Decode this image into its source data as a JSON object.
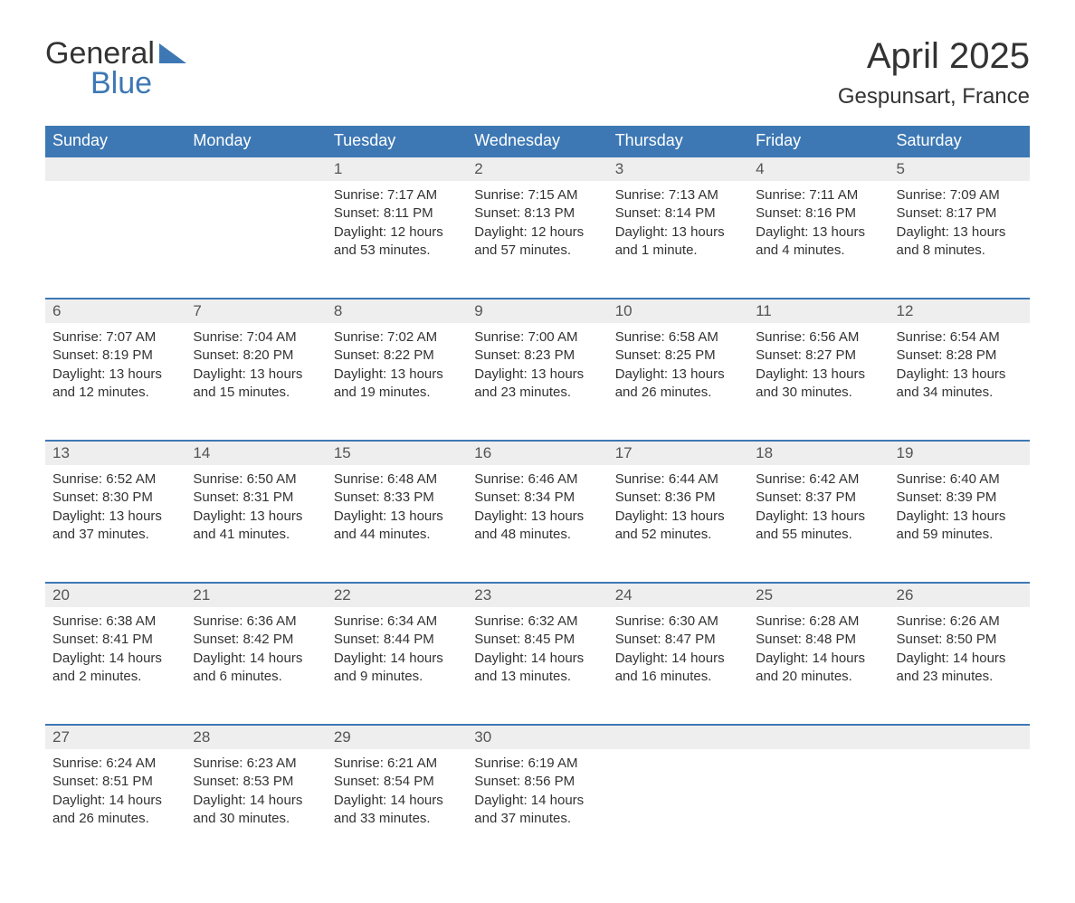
{
  "logo": {
    "word1": "General",
    "word2": "Blue"
  },
  "title": "April 2025",
  "location": "Gespunsart, France",
  "colors": {
    "header_bg": "#3d78b4",
    "header_text": "#ffffff",
    "daynum_bg": "#eeeeee",
    "row_border": "#3d78b4",
    "body_text": "#333333"
  },
  "day_labels": [
    "Sunday",
    "Monday",
    "Tuesday",
    "Wednesday",
    "Thursday",
    "Friday",
    "Saturday"
  ],
  "weeks": [
    [
      null,
      null,
      {
        "n": "1",
        "sr": "Sunrise: 7:17 AM",
        "ss": "Sunset: 8:11 PM",
        "dl": "Daylight: 12 hours and 53 minutes."
      },
      {
        "n": "2",
        "sr": "Sunrise: 7:15 AM",
        "ss": "Sunset: 8:13 PM",
        "dl": "Daylight: 12 hours and 57 minutes."
      },
      {
        "n": "3",
        "sr": "Sunrise: 7:13 AM",
        "ss": "Sunset: 8:14 PM",
        "dl": "Daylight: 13 hours and 1 minute."
      },
      {
        "n": "4",
        "sr": "Sunrise: 7:11 AM",
        "ss": "Sunset: 8:16 PM",
        "dl": "Daylight: 13 hours and 4 minutes."
      },
      {
        "n": "5",
        "sr": "Sunrise: 7:09 AM",
        "ss": "Sunset: 8:17 PM",
        "dl": "Daylight: 13 hours and 8 minutes."
      }
    ],
    [
      {
        "n": "6",
        "sr": "Sunrise: 7:07 AM",
        "ss": "Sunset: 8:19 PM",
        "dl": "Daylight: 13 hours and 12 minutes."
      },
      {
        "n": "7",
        "sr": "Sunrise: 7:04 AM",
        "ss": "Sunset: 8:20 PM",
        "dl": "Daylight: 13 hours and 15 minutes."
      },
      {
        "n": "8",
        "sr": "Sunrise: 7:02 AM",
        "ss": "Sunset: 8:22 PM",
        "dl": "Daylight: 13 hours and 19 minutes."
      },
      {
        "n": "9",
        "sr": "Sunrise: 7:00 AM",
        "ss": "Sunset: 8:23 PM",
        "dl": "Daylight: 13 hours and 23 minutes."
      },
      {
        "n": "10",
        "sr": "Sunrise: 6:58 AM",
        "ss": "Sunset: 8:25 PM",
        "dl": "Daylight: 13 hours and 26 minutes."
      },
      {
        "n": "11",
        "sr": "Sunrise: 6:56 AM",
        "ss": "Sunset: 8:27 PM",
        "dl": "Daylight: 13 hours and 30 minutes."
      },
      {
        "n": "12",
        "sr": "Sunrise: 6:54 AM",
        "ss": "Sunset: 8:28 PM",
        "dl": "Daylight: 13 hours and 34 minutes."
      }
    ],
    [
      {
        "n": "13",
        "sr": "Sunrise: 6:52 AM",
        "ss": "Sunset: 8:30 PM",
        "dl": "Daylight: 13 hours and 37 minutes."
      },
      {
        "n": "14",
        "sr": "Sunrise: 6:50 AM",
        "ss": "Sunset: 8:31 PM",
        "dl": "Daylight: 13 hours and 41 minutes."
      },
      {
        "n": "15",
        "sr": "Sunrise: 6:48 AM",
        "ss": "Sunset: 8:33 PM",
        "dl": "Daylight: 13 hours and 44 minutes."
      },
      {
        "n": "16",
        "sr": "Sunrise: 6:46 AM",
        "ss": "Sunset: 8:34 PM",
        "dl": "Daylight: 13 hours and 48 minutes."
      },
      {
        "n": "17",
        "sr": "Sunrise: 6:44 AM",
        "ss": "Sunset: 8:36 PM",
        "dl": "Daylight: 13 hours and 52 minutes."
      },
      {
        "n": "18",
        "sr": "Sunrise: 6:42 AM",
        "ss": "Sunset: 8:37 PM",
        "dl": "Daylight: 13 hours and 55 minutes."
      },
      {
        "n": "19",
        "sr": "Sunrise: 6:40 AM",
        "ss": "Sunset: 8:39 PM",
        "dl": "Daylight: 13 hours and 59 minutes."
      }
    ],
    [
      {
        "n": "20",
        "sr": "Sunrise: 6:38 AM",
        "ss": "Sunset: 8:41 PM",
        "dl": "Daylight: 14 hours and 2 minutes."
      },
      {
        "n": "21",
        "sr": "Sunrise: 6:36 AM",
        "ss": "Sunset: 8:42 PM",
        "dl": "Daylight: 14 hours and 6 minutes."
      },
      {
        "n": "22",
        "sr": "Sunrise: 6:34 AM",
        "ss": "Sunset: 8:44 PM",
        "dl": "Daylight: 14 hours and 9 minutes."
      },
      {
        "n": "23",
        "sr": "Sunrise: 6:32 AM",
        "ss": "Sunset: 8:45 PM",
        "dl": "Daylight: 14 hours and 13 minutes."
      },
      {
        "n": "24",
        "sr": "Sunrise: 6:30 AM",
        "ss": "Sunset: 8:47 PM",
        "dl": "Daylight: 14 hours and 16 minutes."
      },
      {
        "n": "25",
        "sr": "Sunrise: 6:28 AM",
        "ss": "Sunset: 8:48 PM",
        "dl": "Daylight: 14 hours and 20 minutes."
      },
      {
        "n": "26",
        "sr": "Sunrise: 6:26 AM",
        "ss": "Sunset: 8:50 PM",
        "dl": "Daylight: 14 hours and 23 minutes."
      }
    ],
    [
      {
        "n": "27",
        "sr": "Sunrise: 6:24 AM",
        "ss": "Sunset: 8:51 PM",
        "dl": "Daylight: 14 hours and 26 minutes."
      },
      {
        "n": "28",
        "sr": "Sunrise: 6:23 AM",
        "ss": "Sunset: 8:53 PM",
        "dl": "Daylight: 14 hours and 30 minutes."
      },
      {
        "n": "29",
        "sr": "Sunrise: 6:21 AM",
        "ss": "Sunset: 8:54 PM",
        "dl": "Daylight: 14 hours and 33 minutes."
      },
      {
        "n": "30",
        "sr": "Sunrise: 6:19 AM",
        "ss": "Sunset: 8:56 PM",
        "dl": "Daylight: 14 hours and 37 minutes."
      },
      null,
      null,
      null
    ]
  ]
}
